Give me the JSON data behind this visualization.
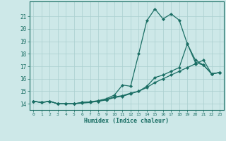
{
  "xlabel": "Humidex (Indice chaleur)",
  "xlim": [
    -0.5,
    23.5
  ],
  "ylim": [
    13.5,
    22.2
  ],
  "yticks": [
    14,
    15,
    16,
    17,
    18,
    19,
    20,
    21
  ],
  "xticks": [
    0,
    1,
    2,
    3,
    4,
    5,
    6,
    7,
    8,
    9,
    10,
    11,
    12,
    13,
    14,
    15,
    16,
    17,
    18,
    19,
    20,
    21,
    22,
    23
  ],
  "bg_color": "#cde8e8",
  "grid_color": "#aacfcf",
  "line_color": "#1a6e64",
  "line1_y": [
    14.2,
    14.1,
    14.2,
    14.0,
    14.0,
    14.0,
    14.1,
    14.15,
    14.2,
    14.3,
    14.5,
    14.6,
    14.8,
    15.0,
    15.4,
    16.1,
    16.3,
    16.6,
    16.9,
    18.8,
    17.5,
    17.1,
    16.4,
    16.5
  ],
  "line2_y": [
    14.2,
    14.1,
    14.2,
    14.0,
    14.0,
    14.0,
    14.1,
    14.15,
    14.25,
    14.4,
    14.7,
    15.5,
    15.4,
    18.0,
    20.65,
    21.6,
    20.8,
    21.2,
    20.7,
    18.8,
    17.3,
    17.1,
    16.4,
    16.5
  ],
  "line3_y": [
    14.2,
    14.1,
    14.2,
    14.0,
    14.0,
    14.0,
    14.05,
    14.1,
    14.2,
    14.35,
    14.55,
    14.65,
    14.85,
    15.0,
    15.3,
    15.7,
    16.0,
    16.3,
    16.6,
    16.9,
    17.2,
    17.5,
    16.4,
    16.5
  ],
  "title_color": "#1a6e64",
  "figsize": [
    3.2,
    2.0
  ],
  "dpi": 100
}
